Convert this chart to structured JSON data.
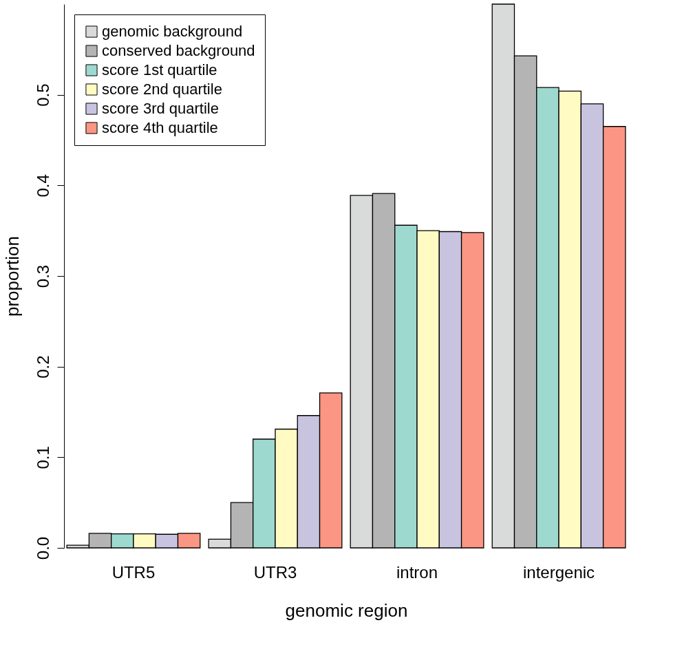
{
  "chart_data": {
    "type": "bar",
    "xlabel": "genomic region",
    "ylabel": "proportion",
    "categories": [
      "UTR5",
      "UTR3",
      "intron",
      "intergenic"
    ],
    "series": [
      {
        "name": "genomic background",
        "color": "#d9dbda",
        "values": [
          0.003,
          0.0096,
          0.389,
          0.6
        ]
      },
      {
        "name": "conserved background",
        "color": "#b4b4b4",
        "values": [
          0.016,
          0.05,
          0.391,
          0.543
        ]
      },
      {
        "name": "score 1st quartile",
        "color": "#9ed9cf",
        "values": [
          0.0155,
          0.12,
          0.356,
          0.508
        ]
      },
      {
        "name": "score 2nd quartile",
        "color": "#fffbc2",
        "values": [
          0.0155,
          0.131,
          0.35,
          0.504
        ]
      },
      {
        "name": "score 3rd quartile",
        "color": "#c8c4e0",
        "values": [
          0.015,
          0.146,
          0.349,
          0.49
        ]
      },
      {
        "name": "score 4th quartile",
        "color": "#fa9683",
        "values": [
          0.016,
          0.171,
          0.348,
          0.465
        ]
      }
    ],
    "ylim": [
      0,
      0.6
    ],
    "yticks": [
      {
        "value": 0,
        "label": "0.0"
      },
      0.1,
      0.2,
      0.3,
      0.4,
      0.5
    ],
    "grid": false,
    "legend": "top left"
  }
}
